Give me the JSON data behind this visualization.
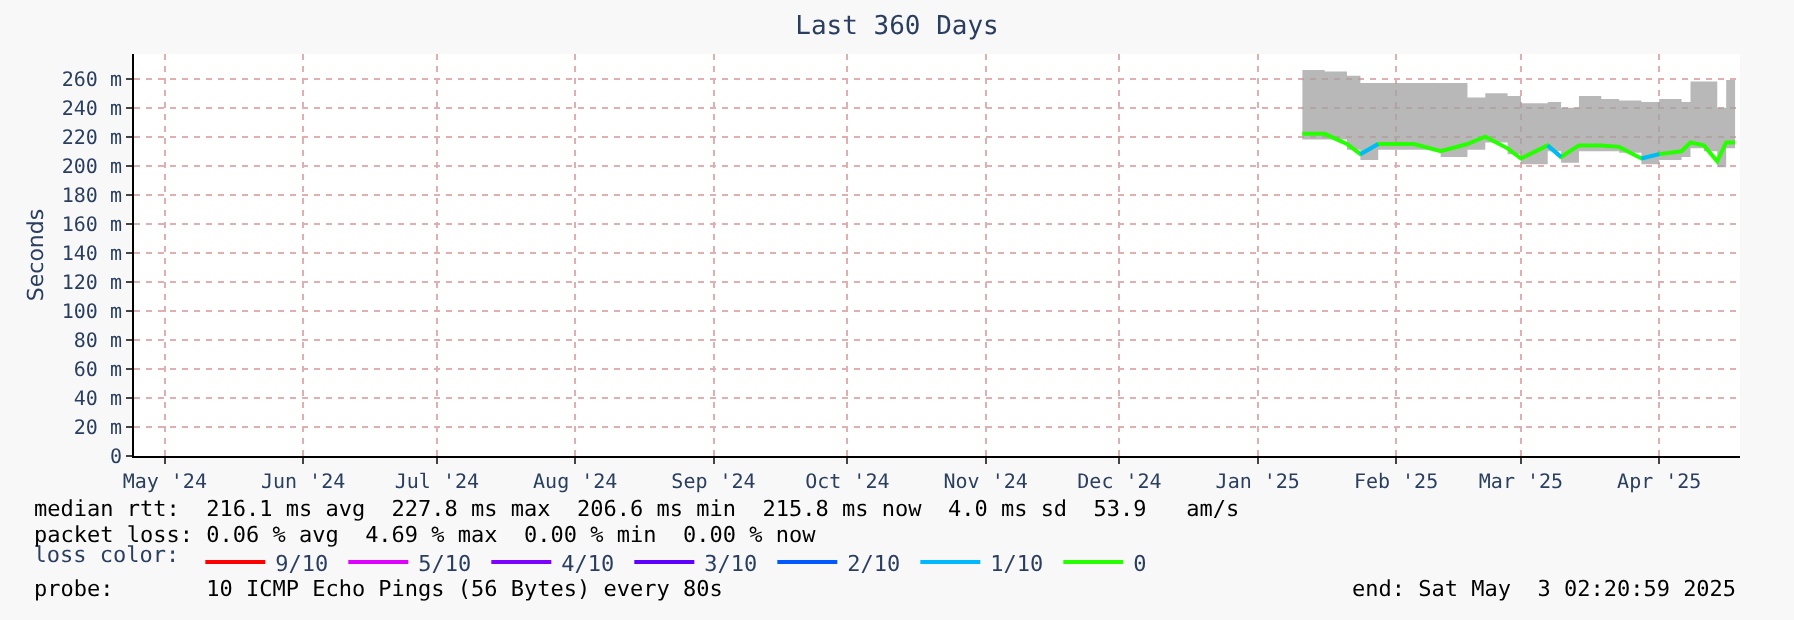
{
  "chart_data": {
    "type": "line",
    "title": "Last 360 Days",
    "ylabel": "Seconds",
    "legend_title": "loss color:",
    "legend": "bottom",
    "grid": true,
    "marker": "none",
    "line_style": "solid",
    "x": [
      "2025-01-25",
      "2025-01-30",
      "2025-02-04",
      "2025-02-07",
      "2025-02-11",
      "2025-02-19",
      "2025-02-25",
      "2025-03-03",
      "2025-03-07",
      "2025-03-12",
      "2025-03-15",
      "2025-03-21",
      "2025-03-24",
      "2025-03-28",
      "2025-04-02",
      "2025-04-06",
      "2025-04-11",
      "2025-04-15",
      "2025-04-20",
      "2025-04-22",
      "2025-04-25",
      "2025-04-28",
      "2025-04-30",
      "2025-05-02"
    ],
    "xlim": [
      "2024-05-08T02:20",
      "2025-05-03T02:20"
    ],
    "xticks": [
      {
        "value": "2024-05-15",
        "label": "May '24"
      },
      {
        "value": "2024-06-15",
        "label": "Jun '24"
      },
      {
        "value": "2024-07-15",
        "label": "Jul '24"
      },
      {
        "value": "2024-08-15",
        "label": "Aug '24"
      },
      {
        "value": "2024-09-15",
        "label": "Sep '24"
      },
      {
        "value": "2024-10-15",
        "label": "Oct '24"
      },
      {
        "value": "2024-11-15",
        "label": "Nov '24"
      },
      {
        "value": "2024-12-15",
        "label": "Dec '24"
      },
      {
        "value": "2025-01-15",
        "label": "Jan '25"
      },
      {
        "value": "2025-02-15",
        "label": "Feb '25"
      },
      {
        "value": "2025-03-15",
        "label": "Mar '25"
      },
      {
        "value": "2025-04-15",
        "label": "Apr '25"
      }
    ],
    "ylim": [
      0,
      277
    ],
    "yticks": [
      0,
      {
        "value": 20,
        "label": "20 m"
      },
      {
        "value": 40,
        "label": "40 m"
      },
      {
        "value": 60,
        "label": "60 m"
      },
      {
        "value": 80,
        "label": "80 m"
      },
      {
        "value": 100,
        "label": "100 m"
      },
      {
        "value": 120,
        "label": "120 m"
      },
      {
        "value": 140,
        "label": "140 m"
      },
      {
        "value": 160,
        "label": "160 m"
      },
      {
        "value": 180,
        "label": "180 m"
      },
      {
        "value": 200,
        "label": "200 m"
      },
      {
        "value": 220,
        "label": "220 m"
      },
      {
        "value": 240,
        "label": "240 m"
      },
      {
        "value": 260,
        "label": "260 m"
      }
    ],
    "series": [
      {
        "name": "0",
        "color": "#26ff00",
        "values": [
          222,
          222,
          215,
          208,
          215,
          215,
          210,
          215,
          220,
          212,
          205,
          214,
          206,
          214,
          214,
          213,
          205,
          208,
          210,
          216,
          214,
          203,
          216,
          216
        ],
        "lower": [
          218,
          218,
          211,
          204,
          211,
          211,
          206,
          211,
          216,
          208,
          201,
          210,
          202,
          210,
          210,
          209,
          201,
          204,
          206,
          212,
          210,
          199,
          212,
          212
        ],
        "upper": [
          266,
          265,
          262,
          257,
          257,
          257,
          257,
          247,
          250,
          248,
          243,
          244,
          240,
          248,
          246,
          245,
          244,
          246,
          244,
          258,
          258,
          240,
          259,
          259
        ]
      },
      {
        "name": "1/10",
        "color": "#00b8ff",
        "values": [
          null,
          null,
          null,
          208,
          215,
          null,
          null,
          null,
          null,
          null,
          null,
          214,
          206,
          null,
          null,
          null,
          205,
          208,
          null,
          null,
          null,
          null,
          null,
          null
        ]
      },
      {
        "name": "2/10",
        "color": "#0059ff",
        "values": [
          null,
          null,
          null,
          null,
          null,
          null,
          null,
          null,
          null,
          null,
          null,
          null,
          null,
          null,
          null,
          null,
          null,
          null,
          null,
          null,
          null,
          null,
          null,
          null
        ]
      },
      {
        "name": "3/10",
        "color": "#5e00ff",
        "values": [
          null,
          null,
          null,
          null,
          null,
          null,
          null,
          null,
          null,
          null,
          null,
          null,
          null,
          null,
          null,
          null,
          null,
          null,
          null,
          null,
          null,
          null,
          null,
          null
        ]
      },
      {
        "name": "4/10",
        "color": "#7e00ff",
        "values": [
          null,
          null,
          null,
          null,
          null,
          null,
          null,
          null,
          null,
          null,
          null,
          null,
          null,
          null,
          null,
          null,
          null,
          null,
          null,
          null,
          null,
          null,
          null,
          null
        ]
      },
      {
        "name": "5/10",
        "color": "#dd00ff",
        "values": [
          null,
          null,
          null,
          null,
          null,
          null,
          null,
          null,
          null,
          null,
          null,
          null,
          null,
          null,
          null,
          null,
          null,
          null,
          null,
          null,
          null,
          null,
          null,
          null
        ]
      },
      {
        "name": "9/10",
        "color": "#ff0000",
        "values": [
          null,
          null,
          null,
          null,
          null,
          null,
          null,
          null,
          null,
          null,
          null,
          null,
          null,
          null,
          null,
          null,
          null,
          null,
          null,
          null,
          null,
          null,
          null,
          null
        ]
      }
    ],
    "annotations": [
      "median rtt:  216.1 ms avg  227.8 ms max  206.6 ms min  215.8 ms now  4.0 ms sd  53.9   am/s",
      "packet loss: 0.06 % avg  4.69 % max  0.00 % min  0.00 % now",
      "probe:       10 ICMP Echo Pings (56 Bytes) every 80s",
      "end: Sat May  3 02:20:59 2025"
    ]
  }
}
